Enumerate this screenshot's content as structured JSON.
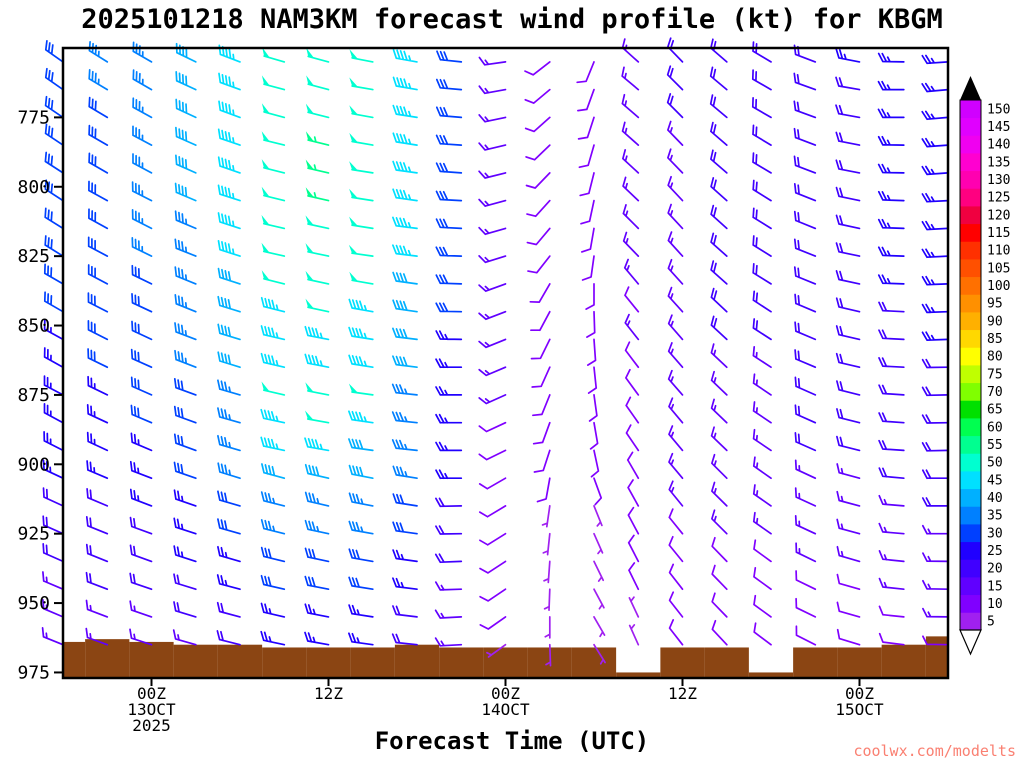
{
  "title": "2025101218 NAM3KM forecast wind profile (kt) for KBGM",
  "watermark": "coolwx.com/modelts",
  "xaxis": {
    "title": "Forecast Time (UTC)",
    "ticks": [
      {
        "hour": 6,
        "label": "00Z",
        "date": "13OCT",
        "year": "2025"
      },
      {
        "hour": 18,
        "label": "12Z"
      },
      {
        "hour": 30,
        "label": "00Z",
        "date": "14OCT"
      },
      {
        "hour": 42,
        "label": "12Z"
      },
      {
        "hour": 54,
        "label": "00Z",
        "date": "15OCT"
      }
    ]
  },
  "yaxis": {
    "ticks": [
      775,
      800,
      825,
      850,
      875,
      900,
      925,
      950,
      975
    ]
  },
  "colorbar": {
    "values": [
      5,
      10,
      15,
      20,
      25,
      30,
      35,
      40,
      45,
      50,
      55,
      60,
      65,
      70,
      75,
      80,
      85,
      90,
      95,
      100,
      105,
      110,
      115,
      120,
      125,
      130,
      135,
      140,
      145,
      150
    ],
    "colors": [
      "#a020f0",
      "#8000ff",
      "#6000ff",
      "#4000ff",
      "#2000ff",
      "#0040ff",
      "#0080ff",
      "#00b0ff",
      "#00e0ff",
      "#00ffd0",
      "#00ff90",
      "#00ff50",
      "#00e000",
      "#80ff00",
      "#c0ff00",
      "#ffff00",
      "#ffd800",
      "#ffb000",
      "#ff9000",
      "#ff7000",
      "#ff5000",
      "#ff3000",
      "#ff0000",
      "#f00040",
      "#ff0080",
      "#ff00b0",
      "#ff00d0",
      "#f000f0",
      "#e000ff",
      "#d000ff"
    ],
    "over_color": "#000000",
    "under_color": "#ffffff"
  },
  "chart_data": {
    "type": "wind-barb-time-height",
    "model": "NAM3KM",
    "init": "2025101218",
    "station": "KBGM",
    "units": "kt",
    "xlabel": "Forecast Time (UTC)",
    "hour_range": [
      0,
      60
    ],
    "pressure_range": [
      750,
      977
    ],
    "hours": [
      0,
      3,
      6,
      9,
      12,
      15,
      18,
      21,
      24,
      27,
      30,
      33,
      36,
      39,
      42,
      45,
      48,
      51,
      54,
      57,
      60
    ],
    "pressure_levels": [
      755,
      765,
      775,
      785,
      795,
      805,
      815,
      825,
      835,
      845,
      855,
      865,
      875,
      885,
      895,
      905,
      915,
      925,
      935,
      945,
      955,
      965
    ],
    "speed_kt": [
      [
        32,
        33,
        35,
        38,
        44,
        49,
        52,
        50,
        45,
        31,
        16,
        11,
        10,
        14,
        18,
        20,
        21,
        22,
        23,
        25,
        26
      ],
      [
        31,
        33,
        34,
        38,
        44,
        50,
        52,
        50,
        44,
        30,
        15,
        10,
        10,
        14,
        18,
        20,
        20,
        22,
        22,
        24,
        25
      ],
      [
        30,
        32,
        34,
        38,
        45,
        50,
        52,
        50,
        44,
        30,
        15,
        10,
        10,
        14,
        18,
        20,
        20,
        22,
        22,
        24,
        25
      ],
      [
        30,
        32,
        34,
        38,
        44,
        50,
        56,
        50,
        44,
        30,
        14,
        10,
        10,
        13,
        17,
        19,
        20,
        21,
        22,
        24,
        25
      ],
      [
        30,
        32,
        34,
        39,
        45,
        52,
        55,
        50,
        44,
        29,
        14,
        10,
        10,
        13,
        17,
        19,
        20,
        21,
        22,
        24,
        25
      ],
      [
        30,
        31,
        34,
        38,
        44,
        51,
        54,
        49,
        43,
        29,
        14,
        10,
        10,
        13,
        17,
        19,
        19,
        21,
        21,
        23,
        24
      ],
      [
        29,
        31,
        33,
        37,
        44,
        50,
        52,
        49,
        43,
        29,
        14,
        10,
        10,
        13,
        17,
        19,
        19,
        21,
        21,
        23,
        24
      ],
      [
        29,
        31,
        33,
        37,
        43,
        49,
        51,
        49,
        43,
        28,
        14,
        9,
        9,
        13,
        16,
        18,
        19,
        20,
        21,
        23,
        24
      ],
      [
        29,
        30,
        32,
        36,
        42,
        48,
        49,
        48,
        42,
        29,
        14,
        10,
        10,
        13,
        17,
        19,
        19,
        21,
        21,
        23,
        24
      ],
      [
        28,
        30,
        32,
        36,
        42,
        47,
        49,
        47,
        41,
        28,
        13,
        9,
        9,
        12,
        16,
        18,
        18,
        20,
        20,
        22,
        23
      ],
      [
        27,
        29,
        31,
        34,
        40,
        45,
        47,
        45,
        40,
        27,
        14,
        9,
        9,
        13,
        16,
        18,
        18,
        20,
        20,
        22,
        23
      ],
      [
        27,
        28,
        30,
        34,
        39,
        45,
        46,
        44,
        39,
        26,
        13,
        9,
        9,
        12,
        15,
        17,
        17,
        19,
        19,
        21,
        22
      ],
      [
        26,
        27,
        29,
        32,
        37,
        49,
        50,
        49,
        37,
        26,
        13,
        9,
        9,
        12,
        15,
        17,
        17,
        19,
        19,
        20,
        21
      ],
      [
        25,
        27,
        28,
        31,
        36,
        47,
        48,
        45,
        36,
        25,
        12,
        8,
        8,
        11,
        14,
        16,
        16,
        18,
        18,
        19,
        20
      ],
      [
        24,
        26,
        27,
        30,
        35,
        44,
        46,
        42,
        35,
        24,
        12,
        8,
        8,
        11,
        14,
        16,
        16,
        18,
        18,
        19,
        20
      ],
      [
        23,
        24,
        26,
        29,
        33,
        38,
        39,
        38,
        33,
        23,
        11,
        8,
        8,
        11,
        14,
        15,
        15,
        17,
        17,
        18,
        19
      ],
      [
        21,
        22,
        24,
        27,
        31,
        35,
        36,
        35,
        31,
        21,
        11,
        7,
        7,
        10,
        13,
        14,
        14,
        15,
        15,
        17,
        18
      ],
      [
        20,
        21,
        22,
        25,
        29,
        33,
        34,
        33,
        29,
        20,
        10,
        7,
        7,
        9,
        12,
        13,
        13,
        14,
        14,
        16,
        16
      ],
      [
        18,
        19,
        20,
        23,
        26,
        30,
        31,
        30,
        26,
        18,
        9,
        6,
        6,
        8,
        11,
        12,
        12,
        13,
        13,
        14,
        15
      ],
      [
        17,
        18,
        19,
        21,
        24,
        28,
        29,
        28,
        24,
        17,
        8,
        6,
        6,
        8,
        10,
        11,
        11,
        12,
        12,
        13,
        14
      ],
      [
        15,
        16,
        17,
        19,
        22,
        25,
        26,
        25,
        22,
        15,
        8,
        5,
        5,
        7,
        9,
        10,
        10,
        11,
        11,
        12,
        13
      ],
      [
        14,
        14,
        15,
        17,
        20,
        23,
        23,
        23,
        20,
        14,
        7,
        5,
        5,
        6,
        8,
        9,
        9,
        10,
        10,
        11,
        11
      ]
    ],
    "direction_deg": [
      [
        305,
        302,
        300,
        296,
        291,
        286,
        285,
        281,
        280,
        276,
        262,
        232,
        202,
        312,
        316,
        311,
        301,
        291,
        281,
        271,
        266
      ],
      [
        305,
        301,
        300,
        295,
        290,
        285,
        285,
        280,
        280,
        275,
        260,
        230,
        200,
        310,
        315,
        310,
        300,
        290,
        280,
        270,
        265
      ],
      [
        304,
        301,
        299,
        295,
        290,
        285,
        284,
        280,
        279,
        275,
        258,
        228,
        198,
        311,
        315,
        310,
        300,
        290,
        280,
        270,
        265
      ],
      [
        304,
        300,
        298,
        294,
        289,
        284,
        284,
        280,
        279,
        274,
        257,
        226,
        196,
        312,
        316,
        311,
        301,
        291,
        281,
        271,
        266
      ],
      [
        303,
        300,
        298,
        294,
        289,
        284,
        283,
        279,
        278,
        274,
        256,
        224,
        194,
        313,
        316,
        311,
        301,
        291,
        281,
        271,
        266
      ],
      [
        303,
        299,
        297,
        293,
        288,
        284,
        283,
        279,
        278,
        273,
        255,
        222,
        192,
        314,
        317,
        312,
        302,
        292,
        282,
        272,
        267
      ],
      [
        302,
        299,
        297,
        293,
        288,
        283,
        282,
        279,
        277,
        273,
        254,
        220,
        190,
        315,
        317,
        312,
        302,
        292,
        282,
        272,
        267
      ],
      [
        302,
        298,
        296,
        292,
        288,
        283,
        282,
        278,
        277,
        272,
        253,
        218,
        188,
        316,
        318,
        312,
        302,
        292,
        282,
        272,
        267
      ],
      [
        300,
        298,
        296,
        292,
        288,
        284,
        282,
        280,
        278,
        272,
        250,
        210,
        180,
        320,
        318,
        312,
        302,
        292,
        282,
        272,
        268
      ],
      [
        300,
        297,
        295,
        292,
        287,
        284,
        282,
        280,
        278,
        271,
        249,
        208,
        178,
        321,
        318,
        313,
        303,
        293,
        283,
        273,
        268
      ],
      [
        299,
        297,
        295,
        291,
        287,
        283,
        281,
        279,
        277,
        271,
        248,
        206,
        176,
        322,
        319,
        313,
        303,
        293,
        283,
        273,
        268
      ],
      [
        299,
        296,
        294,
        291,
        287,
        283,
        281,
        279,
        277,
        270,
        247,
        204,
        174,
        323,
        319,
        313,
        303,
        293,
        283,
        273,
        269
      ],
      [
        298,
        296,
        294,
        290,
        286,
        283,
        281,
        278,
        276,
        270,
        246,
        202,
        172,
        324,
        319,
        314,
        304,
        294,
        284,
        274,
        269
      ],
      [
        298,
        295,
        293,
        290,
        286,
        282,
        280,
        278,
        276,
        270,
        245,
        200,
        170,
        325,
        320,
        314,
        304,
        294,
        284,
        274,
        269
      ],
      [
        297,
        295,
        293,
        290,
        286,
        282,
        280,
        278,
        276,
        270,
        244,
        198,
        168,
        326,
        320,
        314,
        304,
        294,
        284,
        274,
        269
      ],
      [
        295,
        293,
        291,
        289,
        287,
        285,
        283,
        281,
        279,
        270,
        240,
        190,
        160,
        330,
        320,
        315,
        305,
        295,
        285,
        275,
        270
      ],
      [
        295,
        293,
        291,
        289,
        286,
        284,
        283,
        281,
        279,
        269,
        239,
        188,
        158,
        331,
        321,
        315,
        305,
        295,
        285,
        275,
        270
      ],
      [
        294,
        292,
        290,
        288,
        286,
        284,
        282,
        280,
        278,
        269,
        238,
        186,
        156,
        332,
        321,
        315,
        305,
        295,
        285,
        275,
        270
      ],
      [
        294,
        292,
        290,
        288,
        286,
        284,
        282,
        280,
        278,
        268,
        237,
        184,
        154,
        333,
        321,
        316,
        306,
        296,
        286,
        276,
        271
      ],
      [
        293,
        291,
        289,
        287,
        285,
        283,
        281,
        279,
        277,
        268,
        236,
        182,
        152,
        334,
        322,
        316,
        306,
        296,
        286,
        276,
        271
      ],
      [
        293,
        291,
        289,
        287,
        285,
        283,
        281,
        279,
        277,
        267,
        235,
        180,
        150,
        335,
        322,
        316,
        306,
        296,
        286,
        276,
        271
      ],
      [
        292,
        290,
        288,
        286,
        284,
        282,
        280,
        278,
        276,
        267,
        234,
        178,
        148,
        336,
        322,
        317,
        307,
        297,
        287,
        277,
        271
      ]
    ],
    "terrain_top_hpa": [
      964,
      963,
      964,
      965,
      965,
      966,
      966,
      966,
      965,
      966,
      966,
      966,
      966,
      975,
      966,
      966,
      975,
      966,
      966,
      965,
      962
    ],
    "terrain_color": "#8b4513"
  }
}
